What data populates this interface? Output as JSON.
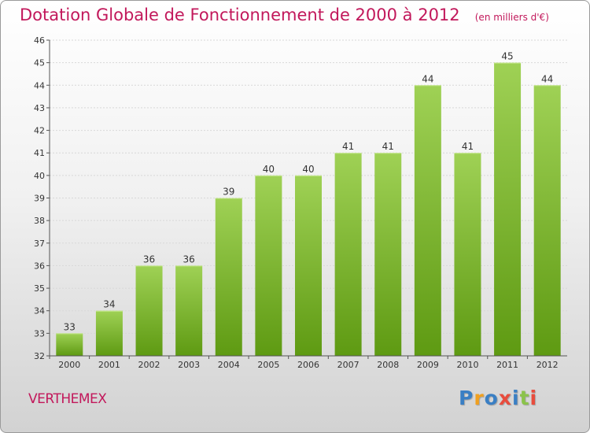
{
  "header": {
    "title": "Dotation Globale de Fonctionnement de 2000 à 2012",
    "subtitle": "(en milliers d'€)"
  },
  "footer": {
    "commune": "VERTHEMEX",
    "logo": "Proxiti"
  },
  "colors": {
    "title": "#c2185b",
    "bar_top": "#9fd155",
    "bar_bottom": "#5e9a12"
  },
  "chart_data": {
    "type": "bar",
    "categories": [
      "2000",
      "2001",
      "2002",
      "2003",
      "2004",
      "2005",
      "2006",
      "2007",
      "2008",
      "2009",
      "2010",
      "2011",
      "2012"
    ],
    "values": [
      33,
      34,
      36,
      36,
      39,
      40,
      40,
      41,
      41,
      44,
      41,
      45,
      44
    ],
    "data_labels": [
      "33",
      "34",
      "36",
      "36",
      "39",
      "40",
      "40",
      "41",
      "41",
      "44",
      "41",
      "45",
      "44"
    ],
    "ylim": [
      32,
      46
    ],
    "yticks": [
      32,
      33,
      34,
      35,
      36,
      37,
      38,
      39,
      40,
      41,
      42,
      43,
      44,
      45,
      46
    ],
    "grid": true,
    "legend": "none"
  }
}
